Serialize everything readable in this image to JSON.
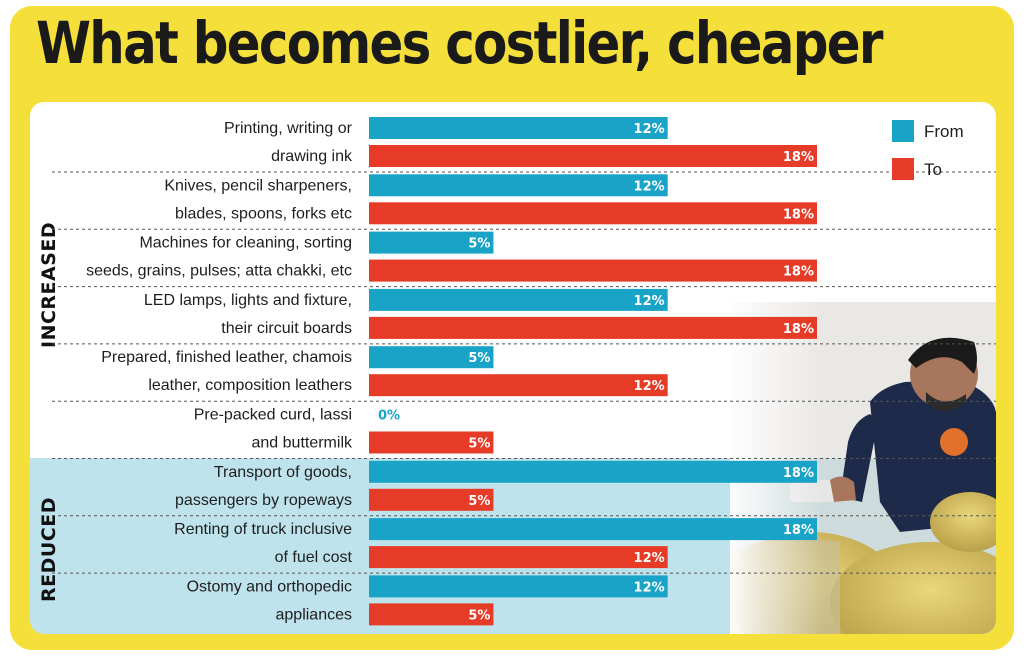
{
  "title": "What becomes costlier, cheaper",
  "colors": {
    "from": "#19a3c6",
    "to": "#e63b26",
    "frame": "#f5df3b",
    "reduced_band": "#bfe3ec"
  },
  "sections": {
    "increased": "INCREASED",
    "reduced": "REDUCED"
  },
  "chart_data": {
    "type": "bar",
    "orientation": "horizontal",
    "title": "What becomes costlier, cheaper",
    "xlim": [
      0,
      18
    ],
    "unit": "%",
    "legend": {
      "position": "top-right",
      "entries": [
        "From",
        "To"
      ]
    },
    "categories": [
      {
        "lines": [
          "Printing, writing or",
          "drawing ink"
        ],
        "group": "INCREASED"
      },
      {
        "lines": [
          "Knives, pencil sharpeners,",
          "blades, spoons, forks etc"
        ],
        "group": "INCREASED"
      },
      {
        "lines": [
          "Machines for cleaning, sorting",
          "seeds, grains, pulses; atta chakki, etc"
        ],
        "group": "INCREASED"
      },
      {
        "lines": [
          "LED lamps, lights and fixture,",
          "their circuit boards"
        ],
        "group": "INCREASED"
      },
      {
        "lines": [
          "Prepared, finished leather, chamois",
          "leather, composition leathers"
        ],
        "group": "INCREASED"
      },
      {
        "lines": [
          "Pre-packed curd, lassi",
          "and buttermilk"
        ],
        "group": "INCREASED"
      },
      {
        "lines": [
          "Transport of goods,",
          "passengers by ropeways"
        ],
        "group": "REDUCED"
      },
      {
        "lines": [
          "Renting of truck inclusive",
          "of fuel cost"
        ],
        "group": "REDUCED"
      },
      {
        "lines": [
          "Ostomy and orthopedic",
          "appliances"
        ],
        "group": "REDUCED"
      }
    ],
    "series": [
      {
        "name": "From",
        "values": [
          12,
          12,
          5,
          12,
          5,
          0,
          18,
          18,
          12
        ]
      },
      {
        "name": "To",
        "values": [
          18,
          18,
          18,
          18,
          12,
          5,
          5,
          12,
          5
        ]
      }
    ]
  }
}
